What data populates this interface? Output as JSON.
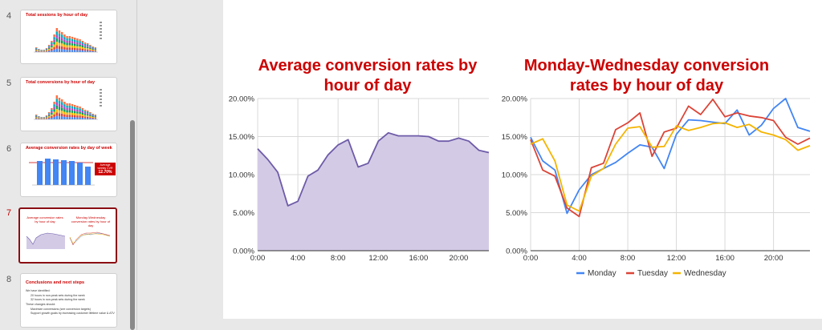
{
  "filmstrip": {
    "slides": [
      {
        "number": "4",
        "title": "Total sessions by hour of day"
      },
      {
        "number": "5",
        "title": "Total conversions by hour of day"
      },
      {
        "number": "6",
        "title": "Average conversion rates by day of week",
        "callout_line1": "Average",
        "callout_line2": "weekly CVR",
        "callout_value": "12.70%"
      },
      {
        "number": "7",
        "title_left": "Average conversion rates by hour of day",
        "title_right": "Monday-Wednesday conversion rates by hour of day"
      },
      {
        "number": "8",
        "title": "Conclusions and next steps",
        "lines": [
          "We have identified:",
          "20 hours in non-peak sets during the week",
          "32 hours in non-peak sets during the week",
          "These changes should:",
          "Maximize conversions (see conversion targets)",
          "Support growth goals by increasing customer lifetime value & ATV"
        ]
      }
    ]
  },
  "chart_data": [
    {
      "type": "area",
      "title": "Average conversion rates by hour of day",
      "xlabel": "",
      "ylabel": "",
      "x_tick_labels": [
        "0:00",
        "4:00",
        "8:00",
        "12:00",
        "16:00",
        "20:00"
      ],
      "y_tick_labels": [
        "0.00%",
        "5.00%",
        "10.00%",
        "15.00%",
        "20.00%"
      ],
      "xlim": [
        0,
        23
      ],
      "ylim": [
        0,
        20
      ],
      "grid": true,
      "series": [
        {
          "color": "#6e5ba8",
          "fill": "#d3cbe6",
          "x": [
            0,
            1,
            2,
            3,
            4,
            5,
            6,
            7,
            8,
            9,
            10,
            11,
            12,
            13,
            14,
            15,
            16,
            17,
            18,
            19,
            20,
            21,
            22,
            23
          ],
          "values": [
            13.4,
            12.0,
            10.3,
            5.9,
            6.5,
            9.8,
            10.6,
            12.6,
            13.9,
            14.6,
            11.0,
            11.5,
            14.4,
            15.5,
            15.1,
            15.1,
            15.1,
            15.0,
            14.4,
            14.4,
            14.8,
            14.4,
            13.2,
            12.9
          ]
        }
      ]
    },
    {
      "type": "line",
      "title": "Monday-Wednesday conversion rates by hour of day",
      "xlabel": "",
      "ylabel": "",
      "x_tick_labels": [
        "0:00",
        "4:00",
        "8:00",
        "12:00",
        "16:00",
        "20:00"
      ],
      "y_tick_labels": [
        "0.00%",
        "5.00%",
        "10.00%",
        "15.00%",
        "20.00%"
      ],
      "xlim": [
        0,
        23
      ],
      "ylim": [
        0,
        20
      ],
      "grid": true,
      "legend": "bottom",
      "series": [
        {
          "name": "Monday",
          "color": "#4285f4",
          "values": [
            14.9,
            11.8,
            10.6,
            4.9,
            8.0,
            10.0,
            10.8,
            11.6,
            12.8,
            13.9,
            13.6,
            10.8,
            15.3,
            17.2,
            17.1,
            16.9,
            16.7,
            18.5,
            15.2,
            16.5,
            18.7,
            20.0,
            16.2,
            15.7
          ]
        },
        {
          "name": "Tuesday",
          "color": "#db4437",
          "values": [
            14.6,
            10.6,
            9.8,
            5.6,
            4.5,
            10.9,
            11.5,
            15.9,
            16.8,
            18.1,
            12.4,
            15.6,
            16.1,
            19.0,
            17.9,
            19.9,
            17.6,
            18.1,
            17.7,
            17.5,
            17.1,
            14.9,
            14.0,
            14.8
          ]
        },
        {
          "name": "Wednesday",
          "color": "#f4b400",
          "values": [
            14.0,
            14.7,
            11.8,
            6.0,
            5.2,
            9.8,
            10.8,
            14.0,
            16.1,
            16.3,
            13.6,
            13.7,
            16.4,
            15.8,
            16.2,
            16.7,
            16.8,
            16.2,
            16.6,
            15.6,
            15.2,
            14.6,
            13.2,
            13.8
          ]
        }
      ]
    }
  ]
}
